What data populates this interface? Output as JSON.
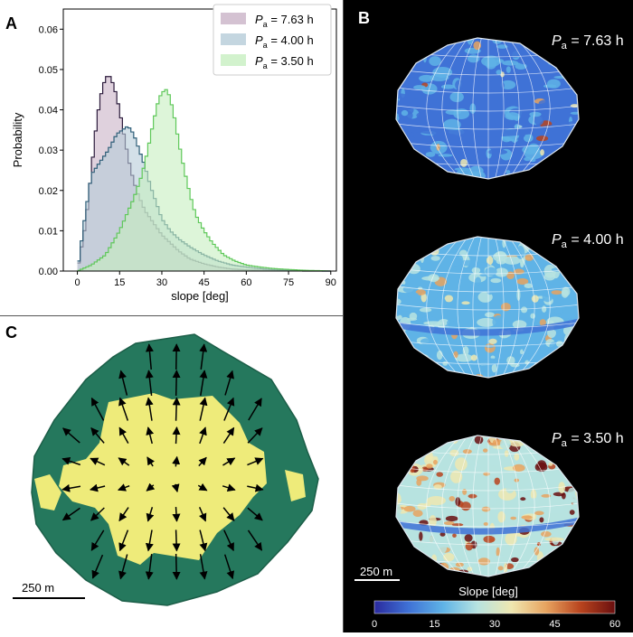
{
  "panel_labels": {
    "a": "A",
    "b": "B",
    "c": "C"
  },
  "chart_data": {
    "type": "histogram",
    "xlabel": "slope [deg]",
    "ylabel": "Probability",
    "xlim": [
      -5,
      92
    ],
    "ylim": [
      0,
      0.065
    ],
    "xticks": [
      0,
      15,
      30,
      45,
      60,
      75,
      90
    ],
    "yticks": [
      0.0,
      0.01,
      0.02,
      0.03,
      0.04,
      0.05,
      0.06
    ],
    "ytick_labels": [
      "0.00",
      "0.01",
      "0.02",
      "0.03",
      "0.04",
      "0.05",
      "0.06"
    ],
    "legend_position": "top-right",
    "series": [
      {
        "name_prefix": "P",
        "name_sub": "a",
        "name_value": " = 7.63 h",
        "fill": "#c9b3c7",
        "edge": "#2b1a3b",
        "x": [
          0,
          3,
          5,
          7,
          9,
          11,
          13,
          15,
          17,
          19,
          21,
          24,
          27,
          30,
          33,
          36,
          40,
          45,
          50,
          55,
          60,
          65,
          70,
          75,
          80,
          88
        ],
        "y": [
          0.0,
          0.012,
          0.025,
          0.038,
          0.046,
          0.049,
          0.046,
          0.04,
          0.032,
          0.025,
          0.02,
          0.015,
          0.012,
          0.009,
          0.007,
          0.005,
          0.003,
          0.0018,
          0.001,
          0.0005,
          0.0003,
          0.0002,
          0.0001,
          0.0001,
          0.0,
          0.0
        ]
      },
      {
        "name_prefix": "P",
        "name_sub": "a",
        "name_value": " = 4.00 h",
        "fill": "#b5ccd8",
        "edge": "#2e5e78",
        "x": [
          0,
          3,
          5,
          8,
          11,
          14,
          16,
          18,
          20,
          22,
          24,
          26,
          28,
          30,
          33,
          36,
          40,
          45,
          50,
          55,
          60,
          65,
          70,
          75,
          80,
          88
        ],
        "y": [
          0.0,
          0.015,
          0.024,
          0.027,
          0.03,
          0.034,
          0.035,
          0.036,
          0.034,
          0.03,
          0.026,
          0.021,
          0.017,
          0.013,
          0.01,
          0.008,
          0.006,
          0.004,
          0.0025,
          0.0015,
          0.001,
          0.0006,
          0.0003,
          0.0002,
          0.0001,
          0.0
        ]
      },
      {
        "name_prefix": "P",
        "name_sub": "a",
        "name_value": " = 3.50 h",
        "fill": "#c7efc0",
        "edge": "#5fc85a",
        "x": [
          0,
          5,
          10,
          15,
          20,
          23,
          25,
          27,
          29,
          31,
          32,
          34,
          36,
          38,
          40,
          42,
          45,
          48,
          52,
          56,
          60,
          65,
          70,
          75,
          80,
          86,
          90
        ],
        "y": [
          0.0,
          0.0015,
          0.004,
          0.01,
          0.018,
          0.024,
          0.03,
          0.037,
          0.043,
          0.045,
          0.045,
          0.04,
          0.032,
          0.025,
          0.019,
          0.014,
          0.01,
          0.007,
          0.004,
          0.0025,
          0.0015,
          0.001,
          0.0006,
          0.0004,
          0.0002,
          0.0001,
          0.0
        ]
      }
    ]
  },
  "panel_b": {
    "shapes": [
      {
        "label_prefix": "P",
        "label_sub": "a",
        "label_value": " = 7.63 h",
        "palette": "cool"
      },
      {
        "label_prefix": "P",
        "label_sub": "a",
        "label_value": " = 4.00 h",
        "palette": "mixed"
      },
      {
        "label_prefix": "P",
        "label_sub": "a",
        "label_value": " = 3.50 h",
        "palette": "warm"
      }
    ],
    "scalebar_label": "250 m",
    "colorbar": {
      "title": "Slope [deg]",
      "ticks": [
        0,
        15,
        30,
        45,
        60
      ],
      "colors": [
        "#2a2a9e",
        "#3f72d6",
        "#5fb3e6",
        "#b7e3e0",
        "#efe7b0",
        "#e7a35f",
        "#b8441e",
        "#6a0f0f"
      ]
    }
  },
  "panel_c": {
    "scalebar_label": "250 m",
    "colors": {
      "outer": "#25785d",
      "inner": "#eeeb7a",
      "arrow": "#000000"
    }
  }
}
